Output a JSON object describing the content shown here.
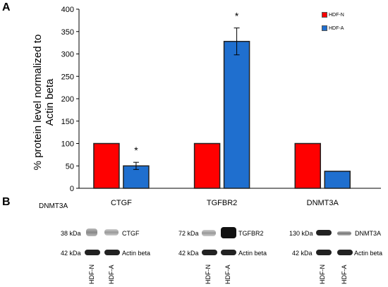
{
  "panel_a_label": "A",
  "panel_b_label": "B",
  "chart_data": {
    "type": "bar",
    "categories": [
      "CTGF",
      "TGFBR2",
      "DNMT3A"
    ],
    "series": [
      {
        "name": "HDF-N",
        "values": [
          100,
          100,
          100
        ],
        "color": "#ff0000"
      },
      {
        "name": "HDF-A",
        "values": [
          50,
          328,
          38
        ],
        "errors": [
          8,
          30,
          null
        ],
        "color": "#1f6fcf"
      }
    ],
    "ylabel": "% protein level normalized to Actin beta",
    "ylim": [
      0,
      400
    ],
    "yticks": [
      "0",
      "50",
      "100",
      "150",
      "200",
      "250",
      "300",
      "350",
      "400"
    ],
    "annotations": [
      "*",
      "*"
    ],
    "legend_position": "top-right"
  },
  "blot": {
    "row_label": "DNMT3A",
    "groups": [
      {
        "gene": "CTGF",
        "target_kda": "38 kDa",
        "target": "CTGF",
        "actin_kda": "42 kDa",
        "actin": "Actin beta"
      },
      {
        "gene": "TGFBR2",
        "target_kda": "72 kDa",
        "target": "TGFBR2",
        "actin_kda": "42 kDa",
        "actin": "Actin beta"
      },
      {
        "gene": "DNMT3A",
        "target_kda": "130 kDa",
        "target": "DNMT3A",
        "actin_kda": "42 kDa",
        "actin": "Actin beta"
      }
    ],
    "lanes": [
      "HDF-N",
      "HDF-A"
    ]
  }
}
